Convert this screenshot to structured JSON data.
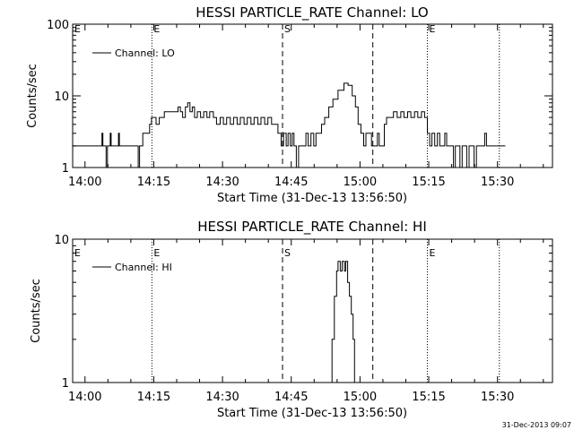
{
  "footer": {
    "timestamp": "31-Dec-2013 09:07"
  },
  "chart_data": [
    {
      "type": "line",
      "title": "HESSI PARTICLE_RATE Channel: LO",
      "xlabel": "Start Time (31-Dec-13 13:56:50)",
      "ylabel": "Counts/sec",
      "xlim": [
        837.3,
        942.0
      ],
      "ylim": [
        1,
        100
      ],
      "yscale": "log",
      "grid": false,
      "legend_position": "top-left",
      "xtick_labels": [
        {
          "x": 840,
          "label": "14:00"
        },
        {
          "x": 855,
          "label": "14:15"
        },
        {
          "x": 870,
          "label": "14:30"
        },
        {
          "x": 885,
          "label": "14:45"
        },
        {
          "x": 900,
          "label": "15:00"
        },
        {
          "x": 915,
          "label": "15:15"
        },
        {
          "x": 930,
          "label": "15:30"
        }
      ],
      "ytick_labels": [
        {
          "y": 1,
          "label": "1"
        },
        {
          "y": 10,
          "label": "10"
        },
        {
          "y": 100,
          "label": "100"
        }
      ],
      "vlines": [
        {
          "x": 854.6,
          "style": "dotted",
          "label": "E"
        },
        {
          "x": 883.1,
          "style": "dashed",
          "label": "S"
        },
        {
          "x": 902.8,
          "style": "dashed",
          "label": ""
        },
        {
          "x": 914.7,
          "style": "dotted",
          "label": "E"
        },
        {
          "x": 930.4,
          "style": "dotted",
          "label": ""
        }
      ],
      "left_marker": {
        "x": 837.3,
        "label": "E"
      },
      "series": [
        {
          "name": "Channel: LO",
          "points": [
            [
              837.3,
              2
            ],
            [
              843.5,
              2
            ],
            [
              843.7,
              3
            ],
            [
              843.9,
              2
            ],
            [
              844.3,
              2
            ],
            [
              844.6,
              1
            ],
            [
              844.9,
              2
            ],
            [
              845.3,
              2
            ],
            [
              845.5,
              3
            ],
            [
              845.7,
              2
            ],
            [
              847.1,
              2
            ],
            [
              847.3,
              3
            ],
            [
              847.5,
              2
            ],
            [
              851.3,
              2
            ],
            [
              851.6,
              1
            ],
            [
              851.9,
              2
            ],
            [
              852.3,
              2
            ],
            [
              852.6,
              3
            ],
            [
              853.2,
              3
            ],
            [
              854.1,
              4
            ],
            [
              854.5,
              5
            ],
            [
              855.0,
              5
            ],
            [
              855.5,
              4
            ],
            [
              856.2,
              5
            ],
            [
              857.3,
              6
            ],
            [
              859.9,
              6
            ],
            [
              860.3,
              7
            ],
            [
              860.8,
              6
            ],
            [
              861.3,
              5
            ],
            [
              861.9,
              7
            ],
            [
              862.4,
              8
            ],
            [
              862.9,
              6
            ],
            [
              863.4,
              7
            ],
            [
              863.9,
              5
            ],
            [
              864.5,
              6
            ],
            [
              865.2,
              5
            ],
            [
              865.9,
              6
            ],
            [
              866.6,
              5
            ],
            [
              867.2,
              6
            ],
            [
              868.0,
              5
            ],
            [
              868.7,
              4
            ],
            [
              869.5,
              5
            ],
            [
              870.2,
              4
            ],
            [
              870.9,
              5
            ],
            [
              871.7,
              4
            ],
            [
              872.4,
              5
            ],
            [
              873.2,
              4
            ],
            [
              873.9,
              5
            ],
            [
              874.7,
              4
            ],
            [
              875.4,
              5
            ],
            [
              876.2,
              4
            ],
            [
              876.9,
              5
            ],
            [
              877.7,
              4
            ],
            [
              878.4,
              5
            ],
            [
              879.2,
              4
            ],
            [
              879.9,
              5
            ],
            [
              880.7,
              4
            ],
            [
              881.4,
              4
            ],
            [
              882.1,
              3
            ],
            [
              882.8,
              2
            ],
            [
              883.3,
              3
            ],
            [
              883.9,
              2
            ],
            [
              884.3,
              3
            ],
            [
              884.8,
              2
            ],
            [
              885.2,
              3
            ],
            [
              885.6,
              2
            ],
            [
              886.1,
              1
            ],
            [
              886.6,
              2
            ],
            [
              887.5,
              2
            ],
            [
              888.2,
              3
            ],
            [
              888.7,
              2
            ],
            [
              889.3,
              3
            ],
            [
              889.9,
              2
            ],
            [
              890.4,
              3
            ],
            [
              890.9,
              3
            ],
            [
              891.6,
              4
            ],
            [
              892.3,
              5
            ],
            [
              893.2,
              7
            ],
            [
              894.1,
              9
            ],
            [
              895.2,
              12
            ],
            [
              896.5,
              15
            ],
            [
              897.4,
              14
            ],
            [
              898.3,
              10
            ],
            [
              899.0,
              7
            ],
            [
              899.6,
              4
            ],
            [
              900.2,
              3
            ],
            [
              900.8,
              2
            ],
            [
              901.3,
              3
            ],
            [
              902.0,
              3
            ],
            [
              902.5,
              2
            ],
            [
              903.3,
              2
            ],
            [
              903.8,
              3
            ],
            [
              904.2,
              2
            ],
            [
              904.9,
              2
            ],
            [
              905.3,
              4
            ],
            [
              905.8,
              5
            ],
            [
              906.6,
              5
            ],
            [
              907.3,
              6
            ],
            [
              908.1,
              5
            ],
            [
              908.9,
              6
            ],
            [
              909.6,
              5
            ],
            [
              910.4,
              6
            ],
            [
              911.1,
              5
            ],
            [
              911.9,
              6
            ],
            [
              912.6,
              5
            ],
            [
              913.4,
              6
            ],
            [
              914.1,
              5
            ],
            [
              914.7,
              3
            ],
            [
              915.2,
              2
            ],
            [
              915.7,
              3
            ],
            [
              916.3,
              2
            ],
            [
              916.9,
              3
            ],
            [
              917.4,
              2
            ],
            [
              918.1,
              2
            ],
            [
              918.5,
              3
            ],
            [
              918.9,
              2
            ],
            [
              920.0,
              2
            ],
            [
              920.4,
              1
            ],
            [
              920.8,
              2
            ],
            [
              921.4,
              2
            ],
            [
              921.8,
              1
            ],
            [
              922.3,
              2
            ],
            [
              922.8,
              2
            ],
            [
              923.3,
              1
            ],
            [
              923.8,
              2
            ],
            [
              924.4,
              2
            ],
            [
              924.9,
              1
            ],
            [
              925.4,
              2
            ],
            [
              926.8,
              2
            ],
            [
              927.2,
              3
            ],
            [
              927.6,
              2
            ],
            [
              931.7,
              2
            ]
          ]
        }
      ]
    },
    {
      "type": "line",
      "title": "HESSI PARTICLE_RATE Channel: HI",
      "xlabel": "Start Time (31-Dec-13 13:56:50)",
      "ylabel": "Counts/sec",
      "xlim": [
        837.3,
        942.0
      ],
      "ylim": [
        1,
        10
      ],
      "yscale": "log",
      "grid": false,
      "legend_position": "top-left",
      "xtick_labels": [
        {
          "x": 840,
          "label": "14:00"
        },
        {
          "x": 855,
          "label": "14:15"
        },
        {
          "x": 870,
          "label": "14:30"
        },
        {
          "x": 885,
          "label": "14:45"
        },
        {
          "x": 900,
          "label": "15:00"
        },
        {
          "x": 915,
          "label": "15:15"
        },
        {
          "x": 930,
          "label": "15:30"
        }
      ],
      "ytick_labels": [
        {
          "y": 1,
          "label": "1"
        },
        {
          "y": 10,
          "label": "10"
        }
      ],
      "vlines": [
        {
          "x": 854.6,
          "style": "dotted",
          "label": "E"
        },
        {
          "x": 883.1,
          "style": "dashed",
          "label": "S"
        },
        {
          "x": 902.8,
          "style": "dashed",
          "label": ""
        },
        {
          "x": 914.7,
          "style": "dotted",
          "label": "E"
        },
        {
          "x": 930.4,
          "style": "dotted",
          "label": ""
        }
      ],
      "left_marker": {
        "x": 837.3,
        "label": "E"
      },
      "series": [
        {
          "name": "Channel: HI",
          "points": [
            [
              893.0,
              0.9
            ],
            [
              893.3,
              1
            ],
            [
              893.9,
              2
            ],
            [
              894.4,
              4
            ],
            [
              894.9,
              6
            ],
            [
              895.2,
              7
            ],
            [
              895.7,
              6
            ],
            [
              896.1,
              7
            ],
            [
              896.6,
              6
            ],
            [
              896.9,
              7
            ],
            [
              897.3,
              5
            ],
            [
              897.7,
              4
            ],
            [
              898.1,
              3
            ],
            [
              898.5,
              2
            ],
            [
              898.8,
              1
            ],
            [
              899.0,
              0.9
            ]
          ]
        }
      ]
    }
  ]
}
